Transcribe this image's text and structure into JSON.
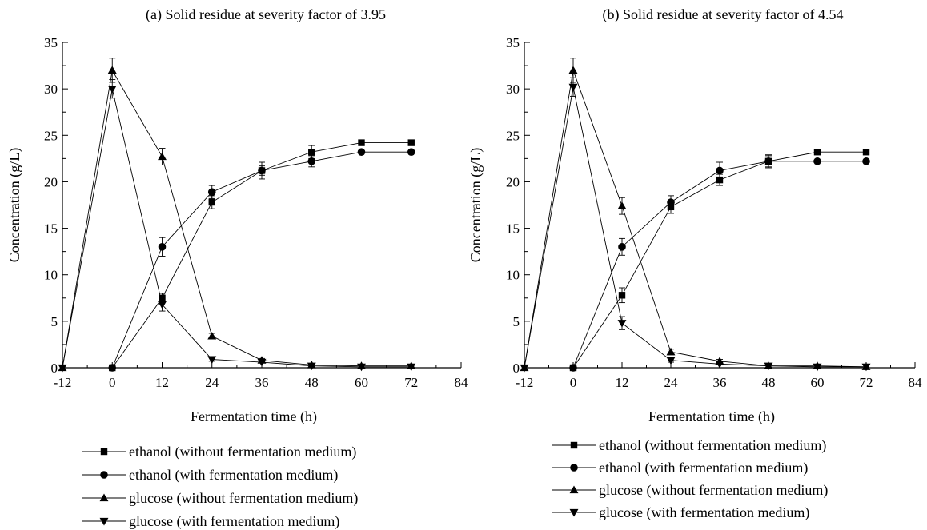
{
  "chart_data": [
    {
      "type": "line",
      "title": "(a) Solid residue at severity factor of 3.95",
      "xlabel": "Fermentation time (h)",
      "ylabel": "Concentration (g/L)",
      "xlim": [
        -12,
        84
      ],
      "ylim": [
        0,
        35
      ],
      "xticks": [
        -12,
        0,
        12,
        24,
        36,
        48,
        60,
        72,
        84
      ],
      "yticks": [
        0,
        5,
        10,
        15,
        20,
        25,
        30,
        35
      ],
      "legend_position": "bottom",
      "series": [
        {
          "name": "ethanol (without fermentation medium)",
          "marker": "square",
          "x": [
            0,
            12,
            24,
            36,
            48,
            60,
            72
          ],
          "y": [
            0,
            7.5,
            17.8,
            21.2,
            23.2,
            24.2,
            24.2
          ],
          "err": [
            0,
            0.5,
            0.7,
            0.9,
            0.7,
            0,
            0
          ]
        },
        {
          "name": "ethanol (with fermentation medium)",
          "marker": "circle",
          "x": [
            0,
            12,
            24,
            36,
            48,
            60,
            72
          ],
          "y": [
            0,
            13.0,
            18.9,
            21.2,
            22.2,
            23.2,
            23.2
          ],
          "err": [
            0,
            1.0,
            0.7,
            0.5,
            0.6,
            0,
            0
          ]
        },
        {
          "name": "glucose (without fermentation medium)",
          "marker": "triangle-up",
          "x": [
            -12,
            0,
            12,
            24,
            36,
            48,
            60,
            72
          ],
          "y": [
            0,
            32.0,
            22.7,
            3.4,
            0.8,
            0.3,
            0.2,
            0.2
          ],
          "err": [
            0,
            1.3,
            0.9,
            0.3,
            0.2,
            0,
            0,
            0
          ]
        },
        {
          "name": "glucose (with fermentation medium)",
          "marker": "triangle-down",
          "x": [
            -12,
            0,
            12,
            24,
            36,
            48,
            60,
            72
          ],
          "y": [
            0,
            30.0,
            6.8,
            0.9,
            0.6,
            0.2,
            0.1,
            0.1
          ],
          "err": [
            0,
            1.0,
            0.7,
            0.2,
            0,
            0,
            0,
            0
          ]
        }
      ]
    },
    {
      "type": "line",
      "title": "(b) Solid residue at severity factor of 4.54",
      "xlabel": "Fermentation time (h)",
      "ylabel": "Concentration (g/L)",
      "xlim": [
        -12,
        84
      ],
      "ylim": [
        0,
        35
      ],
      "xticks": [
        -12,
        0,
        12,
        24,
        36,
        48,
        60,
        72,
        84
      ],
      "yticks": [
        0,
        5,
        10,
        15,
        20,
        25,
        30,
        35
      ],
      "legend_position": "bottom",
      "series": [
        {
          "name": "ethanol (without fermentation medium)",
          "marker": "square",
          "x": [
            0,
            12,
            24,
            36,
            48,
            60,
            72
          ],
          "y": [
            0,
            7.8,
            17.3,
            20.2,
            22.2,
            23.2,
            23.2
          ],
          "err": [
            0,
            0.8,
            0.7,
            0.6,
            0.6,
            0,
            0
          ]
        },
        {
          "name": "ethanol (with fermentation medium)",
          "marker": "circle",
          "x": [
            0,
            12,
            24,
            36,
            48,
            60,
            72
          ],
          "y": [
            0,
            13.0,
            17.8,
            21.2,
            22.2,
            22.2,
            22.2
          ],
          "err": [
            0,
            0.9,
            0.7,
            0.9,
            0.7,
            0,
            0
          ]
        },
        {
          "name": "glucose (without fermentation medium)",
          "marker": "triangle-up",
          "x": [
            -12,
            0,
            12,
            24,
            36,
            48,
            60,
            72
          ],
          "y": [
            0,
            32.0,
            17.4,
            1.7,
            0.7,
            0.2,
            0.2,
            0.1
          ],
          "err": [
            0,
            1.3,
            0.9,
            0.3,
            0.2,
            0,
            0,
            0
          ]
        },
        {
          "name": "glucose (with fermentation medium)",
          "marker": "triangle-down",
          "x": [
            -12,
            0,
            12,
            24,
            36,
            48,
            60,
            72
          ],
          "y": [
            0,
            30.2,
            4.8,
            0.8,
            0.4,
            0.2,
            0.1,
            0.1
          ],
          "err": [
            0,
            1.0,
            0.7,
            0.2,
            0,
            0,
            0,
            0
          ]
        }
      ]
    }
  ]
}
